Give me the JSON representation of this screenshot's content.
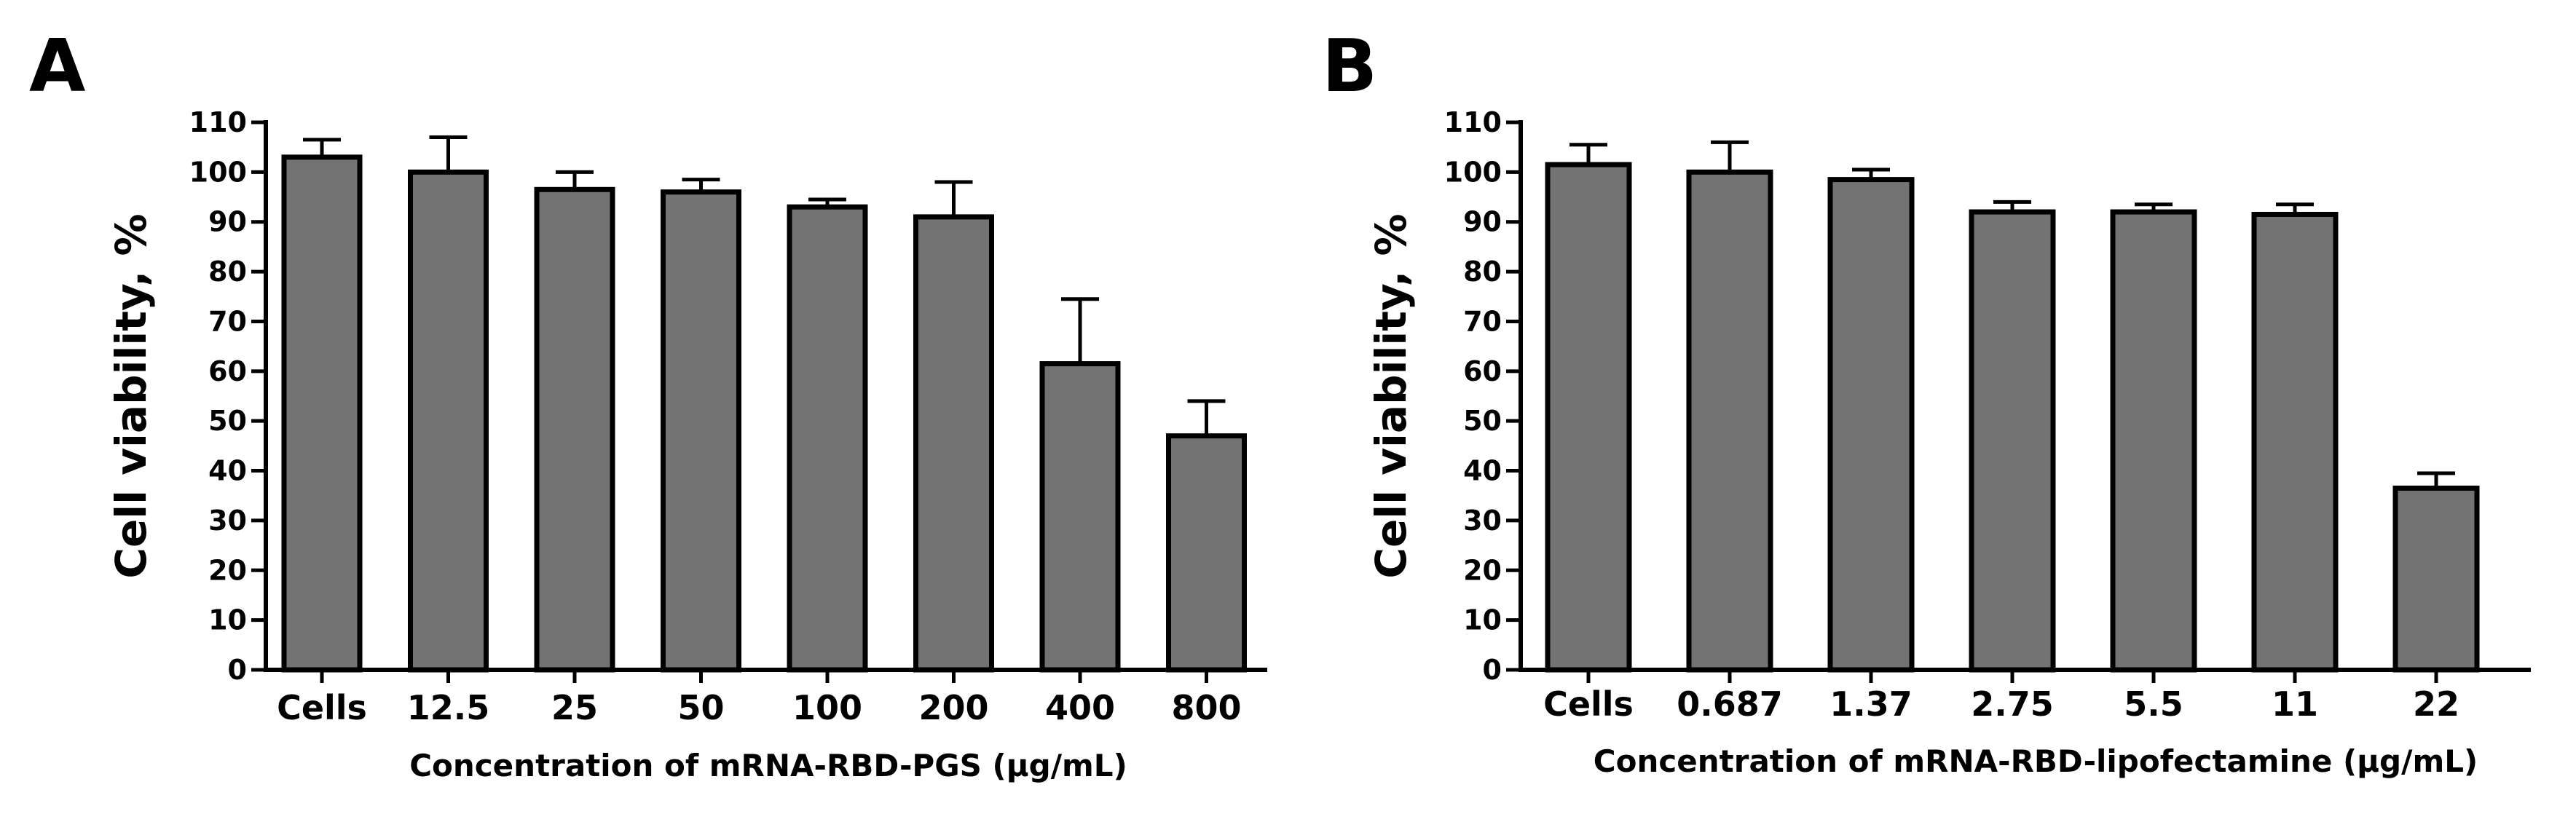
{
  "chart_data": [
    {
      "panel_label": "A",
      "type": "bar",
      "title": "",
      "xlabel": "Concentration of mRNA-RBD-PGS (µg/mL)",
      "ylabel": "Cell viability, %",
      "ylim": [
        0,
        110
      ],
      "yticks": [
        "0",
        "10",
        "20",
        "30",
        "40",
        "50",
        "60",
        "70",
        "80",
        "90",
        "100",
        "110"
      ],
      "categories": [
        "Cells",
        "12.5",
        "25",
        "50",
        "100",
        "200",
        "400",
        "800"
      ],
      "values": [
        103,
        100,
        96.5,
        96,
        93,
        91,
        61.5,
        47
      ],
      "errors": [
        3.5,
        7,
        3.5,
        2.5,
        1.5,
        7,
        13,
        7
      ],
      "bar_color": "#737373"
    },
    {
      "panel_label": "B",
      "type": "bar",
      "title": "",
      "xlabel": "Concentration of mRNA-RBD-lipofectamine (µg/mL)",
      "ylabel": "Cell viability, %",
      "ylim": [
        0,
        110
      ],
      "yticks": [
        "0",
        "10",
        "20",
        "30",
        "40",
        "50",
        "60",
        "70",
        "80",
        "90",
        "100",
        "110"
      ],
      "categories": [
        "Cells",
        "0.687",
        "1.37",
        "2.75",
        "5.5",
        "11",
        "22"
      ],
      "values": [
        101.5,
        100,
        98.5,
        92,
        92,
        91.5,
        36.5
      ],
      "errors": [
        4,
        6,
        2,
        2,
        1.5,
        2,
        3
      ],
      "bar_color": "#737373"
    }
  ]
}
